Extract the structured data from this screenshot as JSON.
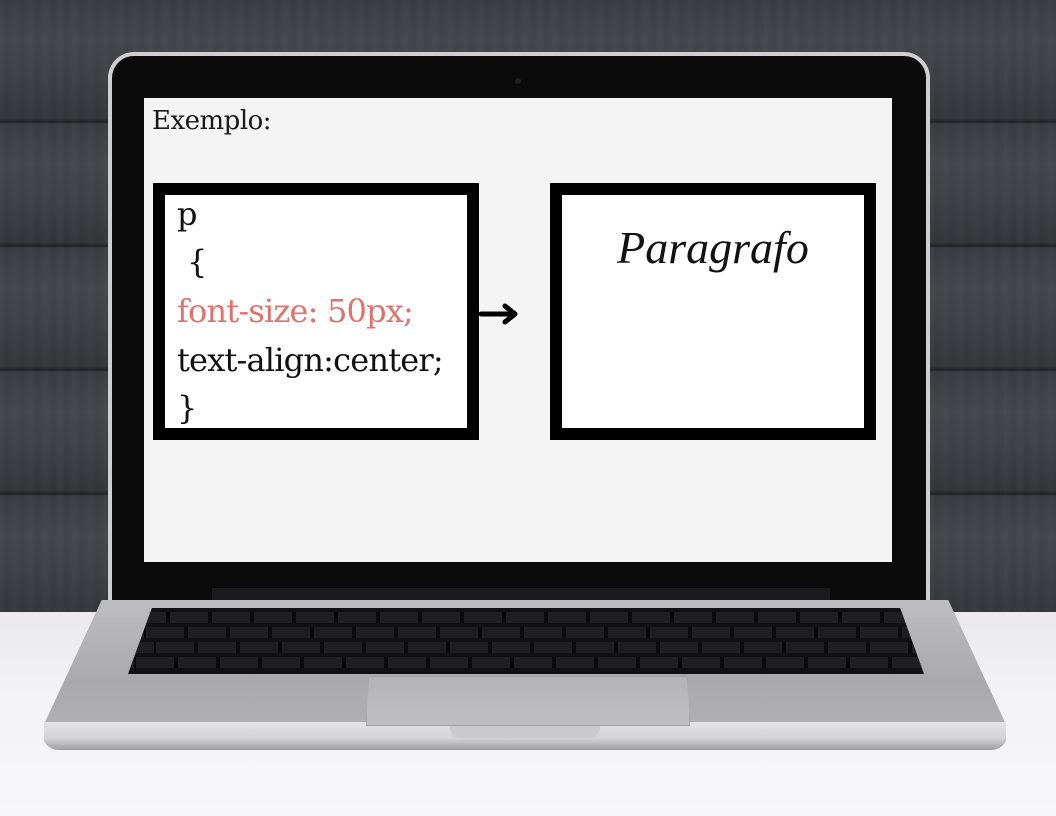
{
  "slide": {
    "title": "Exemplo:"
  },
  "code_box": {
    "lines": [
      {
        "text": "p",
        "accent": false
      },
      {
        "text": "{",
        "accent": false
      },
      {
        "text": "font-size: 50px;",
        "accent": true
      },
      {
        "text": "text-align:center;",
        "accent": false
      },
      {
        "text": "}",
        "accent": false
      }
    ],
    "accent_color": "#e4706b"
  },
  "arrow": {
    "icon": "arrow-right-icon"
  },
  "result_box": {
    "text": "Paragrafo"
  },
  "colors": {
    "wall": "#3b3d42",
    "table": "#f3f3f5",
    "screen": "#f4f4f4",
    "laptop_body": "#bdbdc0"
  }
}
